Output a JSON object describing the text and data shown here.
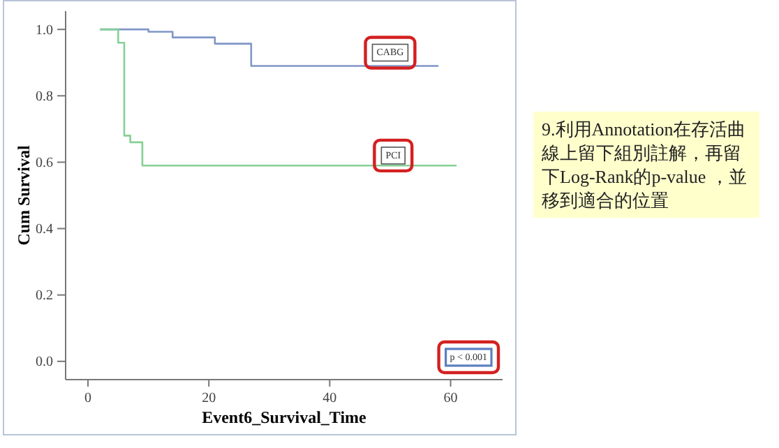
{
  "chart_data": [
    {
      "type": "step",
      "xlabel": "Event6_Survival_Time",
      "ylabel": "Cum Survival",
      "xlim": [
        -3.7,
        68.6
      ],
      "ylim": [
        -0.055,
        1.055
      ],
      "xticks": [
        0,
        20,
        40,
        60
      ],
      "yticks": [
        {
          "value": 0,
          "label": "0.0"
        },
        0.2,
        0.4,
        0.6,
        0.8,
        {
          "value": 1,
          "label": "1.0"
        }
      ],
      "grid": false,
      "series": [
        {
          "color": "#8096c8",
          "x": [
            2,
            10,
            14,
            21,
            27,
            58
          ],
          "values": [
            1,
            0.993,
            0.976,
            0.957,
            0.89,
            0.89
          ]
        },
        {
          "color": "#86d096",
          "x": [
            2,
            5,
            6,
            7,
            9,
            61
          ],
          "values": [
            1,
            0.96,
            0.68,
            0.66,
            0.59,
            0.59
          ]
        }
      ],
      "annotations": [
        {
          "text": "CABG",
          "x": 50,
          "y": 0.93
        },
        {
          "text": "PCI",
          "x": 50.5,
          "y": 0.62
        },
        "p < 0.001"
      ]
    },
    {
      "type": "other",
      "annotations": [
        "9.利用Annotation在存活曲線上留下組別註解，再留下Log-Rank的p-value ，並移到適合的位置"
      ]
    }
  ]
}
